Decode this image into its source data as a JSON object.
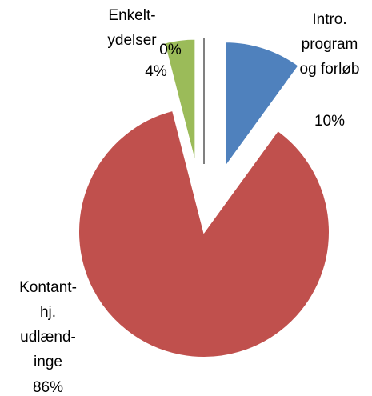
{
  "chart_data": {
    "type": "pie",
    "categories": [
      "Intro.\nprogram\nog forløb",
      "Kontant-\nhj.\nudlænd-\ninge",
      "Enkelt-\nydelser",
      null
    ],
    "values": [
      10,
      86,
      4,
      0
    ],
    "value_labels": [
      "10%",
      "86%",
      "4%",
      "0%"
    ],
    "colors": [
      "#4f81bd",
      "#c0504d",
      "#9bbb59",
      "#8064a2"
    ]
  }
}
